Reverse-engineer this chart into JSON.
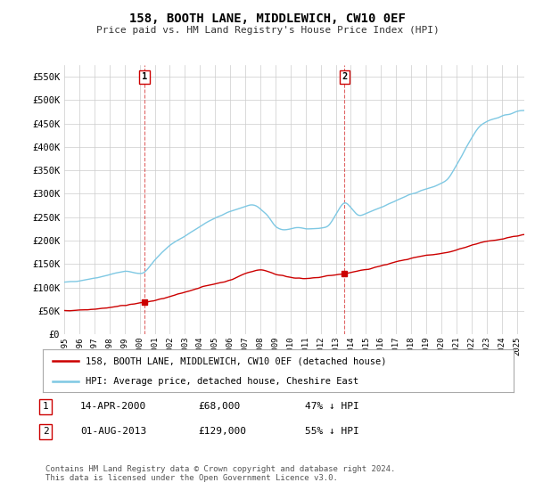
{
  "title": "158, BOOTH LANE, MIDDLEWICH, CW10 0EF",
  "subtitle": "Price paid vs. HM Land Registry's House Price Index (HPI)",
  "hpi_color": "#7ec8e3",
  "price_color": "#cc0000",
  "background_color": "#ffffff",
  "grid_color": "#cccccc",
  "ylim": [
    0,
    575000
  ],
  "yticks": [
    0,
    50000,
    100000,
    150000,
    200000,
    250000,
    300000,
    350000,
    400000,
    450000,
    500000,
    550000
  ],
  "ytick_labels": [
    "£0",
    "£50K",
    "£100K",
    "£150K",
    "£200K",
    "£250K",
    "£300K",
    "£350K",
    "£400K",
    "£450K",
    "£500K",
    "£550K"
  ],
  "sale1_year": 2000.29,
  "sale1_price": 68000,
  "sale1_label": "1",
  "sale1_date": "14-APR-2000",
  "sale1_hpi_diff": "47% ↓ HPI",
  "sale2_year": 2013.58,
  "sale2_price": 129000,
  "sale2_label": "2",
  "sale2_date": "01-AUG-2013",
  "sale2_hpi_diff": "55% ↓ HPI",
  "legend_label1": "158, BOOTH LANE, MIDDLEWICH, CW10 0EF (detached house)",
  "legend_label2": "HPI: Average price, detached house, Cheshire East",
  "footer": "Contains HM Land Registry data © Crown copyright and database right 2024.\nThis data is licensed under the Open Government Licence v3.0.",
  "xmin": 1995.0,
  "xmax": 2025.5
}
